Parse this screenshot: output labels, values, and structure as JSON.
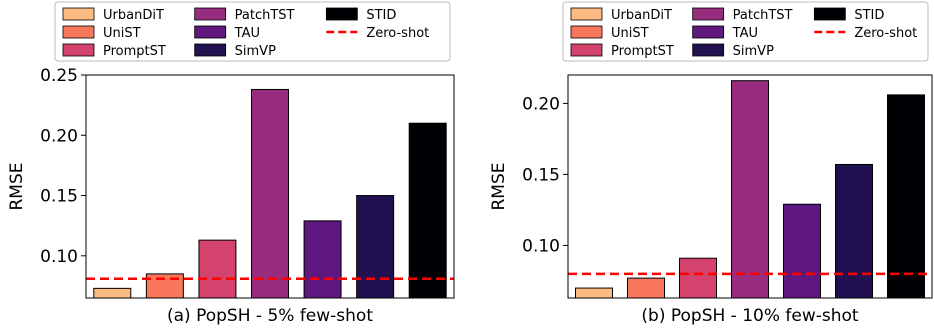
{
  "colors": {
    "UrbanDiT": "#fdbb84",
    "UniST": "#f8765c",
    "PromptST": "#d3436e",
    "PatchTST": "#982d80",
    "TAU": "#5f187f",
    "SimVP": "#221150",
    "STID": "#000004",
    "zero_shot": "#ff0000"
  },
  "legend_labels": [
    "UrbanDiT",
    "UniST",
    "PromptST",
    "PatchTST",
    "TAU",
    "SimVP",
    "STID",
    "Zero-shot"
  ],
  "chart_data": [
    {
      "type": "bar",
      "caption": "(a) PopSH - 5% few-shot",
      "ylabel": "RMSE",
      "ylim": [
        0.065,
        0.25
      ],
      "yticks": [
        0.1,
        0.15,
        0.2,
        0.25
      ],
      "ytick_labels": [
        "0.10",
        "0.15",
        "0.20",
        "0.25"
      ],
      "categories": [
        "UrbanDiT",
        "UniST",
        "PromptST",
        "PatchTST",
        "TAU",
        "SimVP",
        "STID"
      ],
      "values": [
        0.073,
        0.085,
        0.113,
        0.238,
        0.129,
        0.15,
        0.21
      ],
      "zero_shot": 0.081,
      "legend": "top, 3 columns",
      "grid": false
    },
    {
      "type": "bar",
      "caption": "(b) PopSH - 10% few-shot",
      "ylabel": "RMSE",
      "ylim": [
        0.063,
        0.22
      ],
      "yticks": [
        0.1,
        0.15,
        0.2
      ],
      "ytick_labels": [
        "0.10",
        "0.15",
        "0.20"
      ],
      "categories": [
        "UrbanDiT",
        "UniST",
        "PromptST",
        "PatchTST",
        "TAU",
        "SimVP",
        "STID"
      ],
      "values": [
        0.07,
        0.077,
        0.091,
        0.216,
        0.129,
        0.157,
        0.206
      ],
      "zero_shot": 0.08,
      "legend": "top, 3 columns",
      "grid": false
    }
  ]
}
